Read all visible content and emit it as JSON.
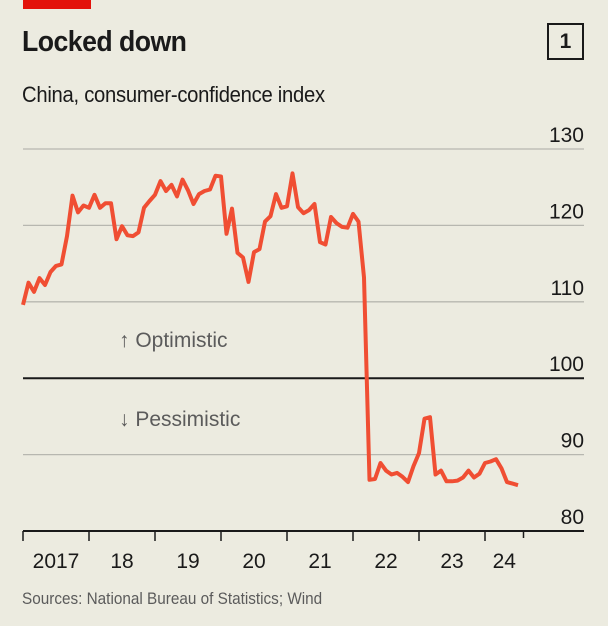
{
  "header": {
    "title": "Locked down",
    "chart_number": "1",
    "subtitle": "China, consumer-confidence index"
  },
  "footer": {
    "source": "Sources: National Bureau of Statistics; Wind"
  },
  "colors": {
    "background": "#ecebe0",
    "line": "#f04e33",
    "brand_red": "#e3120b",
    "gridline": "#b7b7b0",
    "baseline": "#1a1a1a",
    "annotation": "#5b5b5b"
  },
  "chart_data": {
    "type": "line",
    "title": "Locked down",
    "subtitle": "China, consumer-confidence index",
    "xlabel": "",
    "ylabel": "",
    "ylim": [
      80,
      130
    ],
    "yticks": [
      80,
      90,
      100,
      110,
      120,
      130
    ],
    "ytick_labels": [
      "80",
      "90",
      "100",
      "110",
      "120",
      "130"
    ],
    "y_axis_position": "right",
    "grid": true,
    "reference_line": 100,
    "x_start": "2017-01",
    "x_end": "2024-07",
    "x_ticks": [
      "2017",
      "18",
      "19",
      "20",
      "21",
      "22",
      "23",
      "24"
    ],
    "annotations": [
      {
        "text": "↑ Optimistic",
        "position": "above-100"
      },
      {
        "text": "↓ Pessimistic",
        "position": "below-100"
      }
    ],
    "series": [
      {
        "name": "Consumer-confidence index",
        "frequency": "monthly",
        "values": [
          109.6,
          112.5,
          111.3,
          113.1,
          112.2,
          113.9,
          114.7,
          114.9,
          118.6,
          123.9,
          121.7,
          122.6,
          122.3,
          124.0,
          122.3,
          122.9,
          122.9,
          118.2,
          119.9,
          118.7,
          118.6,
          119.1,
          122.3,
          123.2,
          124.0,
          125.8,
          124.5,
          125.3,
          123.8,
          126.0,
          124.6,
          122.8,
          124.1,
          124.5,
          124.7,
          126.5,
          126.4,
          118.9,
          122.2,
          116.4,
          115.8,
          112.6,
          116.5,
          116.9,
          120.5,
          121.2,
          124.1,
          122.3,
          122.5,
          126.8,
          122.4,
          121.6,
          122.0,
          122.8,
          117.8,
          117.5,
          121.1,
          120.3,
          119.8,
          119.7,
          121.5,
          120.5,
          113.2,
          86.7,
          86.8,
          88.9,
          87.9,
          87.4,
          87.6,
          87.1,
          86.4,
          88.5,
          90.2,
          94.7,
          94.9,
          87.4,
          87.9,
          86.5,
          86.5,
          86.6,
          87.0,
          87.9,
          87.0,
          87.5,
          88.9,
          89.1,
          89.4,
          88.2,
          86.4,
          86.2,
          86.0
        ]
      }
    ]
  }
}
